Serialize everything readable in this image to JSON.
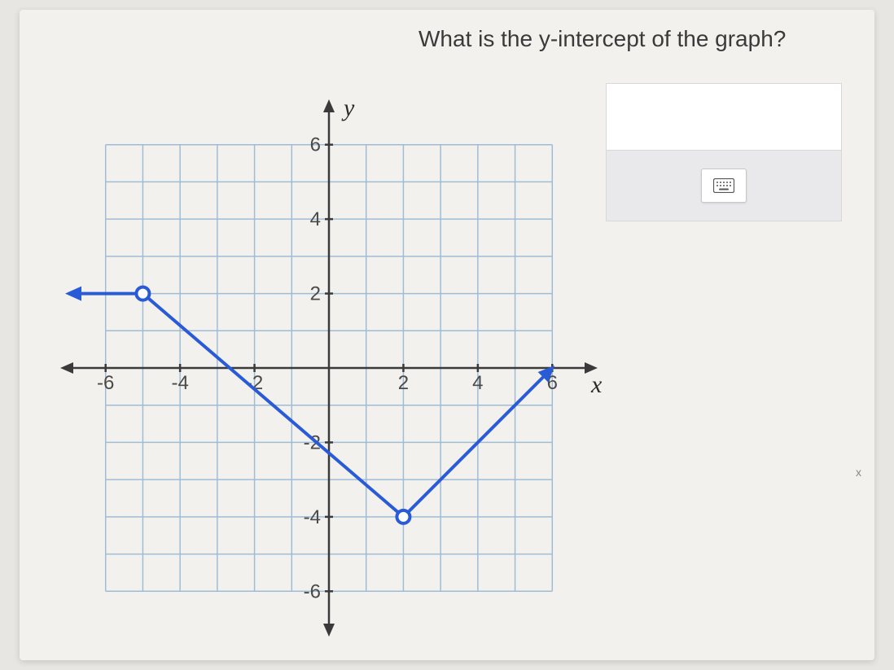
{
  "question": "What is the y-intercept of the graph?",
  "chart": {
    "type": "line",
    "background_color": "#f3f1ee",
    "grid_color": "#9fbcd6",
    "axis_color": "#3a3a3a",
    "line_color": "#2a5bd7",
    "line_width": 4,
    "xlim": [
      -7,
      7
    ],
    "ylim": [
      -7,
      7
    ],
    "xtick_vals": [
      -6,
      -4,
      -2,
      2,
      4,
      6
    ],
    "xtick_labels": [
      "-6",
      "-4",
      "-2",
      "2",
      "4",
      "6"
    ],
    "ytick_vals": [
      -6,
      -4,
      -2,
      2,
      4,
      6
    ],
    "ytick_labels": [
      "-6",
      "-4",
      "-2",
      "2",
      "4",
      "6"
    ],
    "x_axis_label": "x",
    "y_axis_label": "y",
    "segments": [
      {
        "from": [
          -7,
          2
        ],
        "to": [
          -5,
          2
        ],
        "arrow_start": true
      },
      {
        "from": [
          -5,
          2
        ],
        "to": [
          2,
          -4
        ]
      },
      {
        "from": [
          2,
          -4
        ],
        "to": [
          6,
          0
        ],
        "arrow_end": true
      }
    ],
    "open_points": [
      {
        "x": -5,
        "y": 2
      },
      {
        "x": 2,
        "y": -4
      }
    ],
    "tick_fontsize": 24,
    "axis_label_fontsize": 30,
    "grid_every": 1
  },
  "answer": {
    "value": "",
    "keypad_icon": "keyboard-icon"
  },
  "stray": {
    "x_mark": "x"
  }
}
